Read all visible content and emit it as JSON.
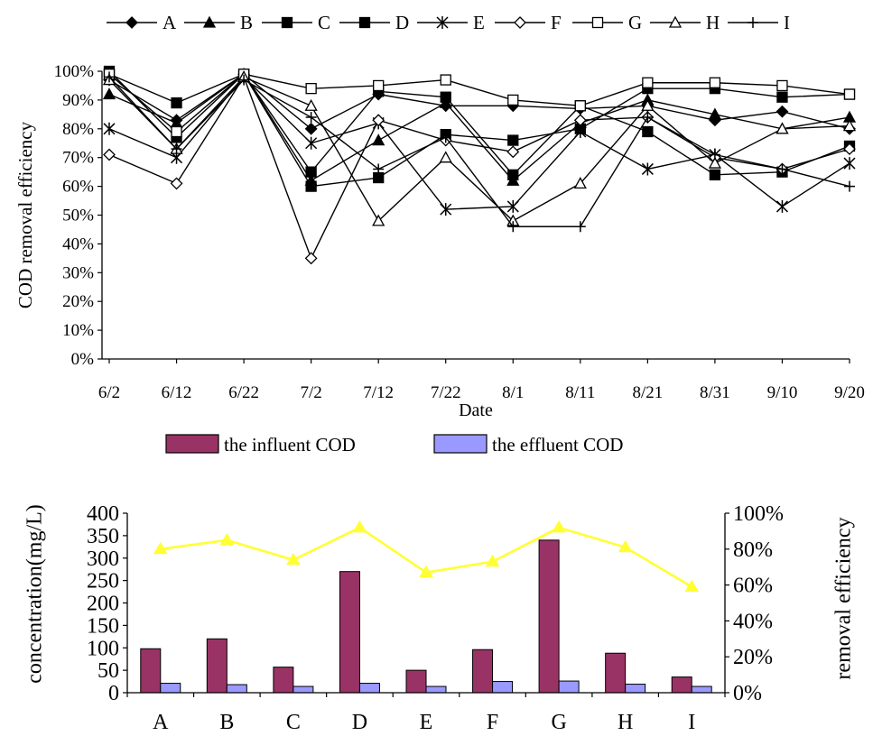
{
  "chart_data": [
    {
      "type": "line",
      "xlabel": "Date",
      "ylabel": "COD removal efficiency",
      "ylim": [
        0,
        100
      ],
      "y_ticks": [
        "0%",
        "10%",
        "20%",
        "30%",
        "40%",
        "50%",
        "60%",
        "70%",
        "80%",
        "90%",
        "100%"
      ],
      "x": [
        "6/2",
        "6/12",
        "6/22",
        "7/2",
        "7/12",
        "7/22",
        "8/1",
        "8/11",
        "8/21",
        "8/31",
        "9/10",
        "9/20"
      ],
      "legend_position": "top",
      "grid": false,
      "series": [
        {
          "name": "A",
          "marker": "diamond-filled",
          "values": [
            97,
            83,
            99,
            80,
            92,
            88,
            88,
            87,
            88,
            83,
            86,
            80
          ]
        },
        {
          "name": "B",
          "marker": "triangle-filled",
          "values": [
            92,
            82,
            99,
            62,
            76,
            89,
            62,
            82,
            90,
            85,
            80,
            84
          ]
        },
        {
          "name": "C",
          "marker": "square-filled",
          "values": [
            99,
            89,
            99,
            60,
            63,
            78,
            76,
            80,
            94,
            94,
            91,
            92
          ]
        },
        {
          "name": "D",
          "marker": "square-filled",
          "values": [
            100,
            77,
            99,
            65,
            93,
            91,
            64,
            88,
            79,
            64,
            65,
            74
          ]
        },
        {
          "name": "E",
          "marker": "asterisk",
          "values": [
            80,
            70,
            98,
            75,
            82,
            52,
            53,
            79,
            66,
            71,
            53,
            68
          ]
        },
        {
          "name": "F",
          "marker": "diamond-open",
          "values": [
            71,
            61,
            98,
            35,
            83,
            76,
            72,
            83,
            84,
            70,
            66,
            73
          ]
        },
        {
          "name": "G",
          "marker": "square-open",
          "values": [
            99,
            79,
            99,
            94,
            95,
            97,
            90,
            88,
            96,
            96,
            95,
            92
          ]
        },
        {
          "name": "H",
          "marker": "triangle-open",
          "values": [
            97,
            73,
            98,
            88,
            48,
            70,
            48,
            61,
            88,
            68,
            80,
            81
          ]
        },
        {
          "name": "I",
          "marker": "plus",
          "values": [
            98,
            73,
            97,
            84,
            66,
            77,
            46,
            46,
            84,
            71,
            66,
            60
          ]
        }
      ]
    },
    {
      "type": "bar",
      "categories": [
        "A",
        "B",
        "C",
        "D",
        "E",
        "F",
        "G",
        "H",
        "I"
      ],
      "ylabel": "concentration(mg/L)",
      "ylim": [
        0,
        400
      ],
      "y_ticks": [
        "0",
        "50",
        "100",
        "150",
        "200",
        "250",
        "300",
        "350",
        "400"
      ],
      "y2label": "removal efficiency",
      "y2lim": [
        0,
        100
      ],
      "y2_ticks": [
        "0%",
        "20%",
        "40%",
        "60%",
        "80%",
        "100%"
      ],
      "legend_position": "top",
      "series": [
        {
          "name": "the influent COD",
          "kind": "bar",
          "color": "#993366",
          "values": [
            98,
            120,
            57,
            270,
            50,
            96,
            340,
            88,
            35
          ]
        },
        {
          "name": "the effluent COD",
          "kind": "bar",
          "color": "#9999ff",
          "values": [
            21,
            18,
            14,
            21,
            14,
            25,
            26,
            19,
            14
          ]
        },
        {
          "kind": "line",
          "axis": "right",
          "color": "#ffff33",
          "values": [
            80,
            85,
            74,
            92,
            67,
            73,
            92,
            81,
            59
          ]
        }
      ]
    }
  ]
}
